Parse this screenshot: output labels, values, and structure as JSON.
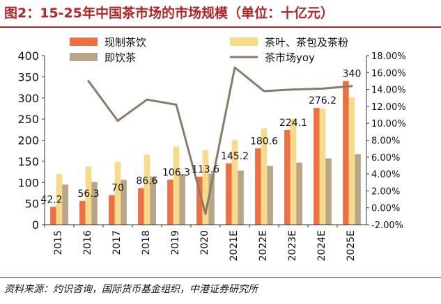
{
  "title": "图2：15-25年中国茶市场的市场规模（单位：十亿元）",
  "source": "资料来源：灼识咨询，国际货币基金组织，中港证券研究所",
  "colors": {
    "series_fresh": "#ec7044",
    "series_tea_leaf": "#f8db8a",
    "series_instant": "#b9a688",
    "series_yoy": "#8a7a68",
    "title": "#b42525"
  },
  "chart_data": {
    "type": "bar",
    "categories": [
      "2015",
      "2016",
      "2017",
      "2018",
      "2019",
      "2020",
      "2021E",
      "2022E",
      "2023E",
      "2024E",
      "2025E"
    ],
    "series": [
      {
        "name": "现制茶饮",
        "axis": "left",
        "kind": "bar",
        "values": [
          42.2,
          56.3,
          70,
          86.6,
          106.3,
          113.6,
          145.2,
          180.6,
          224.1,
          276.2,
          340
        ],
        "labels": [
          "42.2",
          "56.3",
          "70",
          "86.6",
          "106.3",
          "113.6",
          "145.2",
          "180.6",
          "224.1",
          "276.2",
          "340"
        ]
      },
      {
        "name": "茶叶、茶包及茶粉",
        "axis": "left",
        "kind": "bar",
        "values": [
          120,
          138,
          149,
          166,
          185,
          176,
          200,
          228,
          250,
          275,
          301
        ]
      },
      {
        "name": "即饮茶",
        "axis": "left",
        "kind": "bar",
        "values": [
          95,
          101,
          106,
          114,
          120,
          121,
          128,
          139,
          147,
          157,
          167
        ]
      },
      {
        "name": "茶市场yoy",
        "axis": "right",
        "kind": "line",
        "values": [
          null,
          15.0,
          10.3,
          12.8,
          12.2,
          -0.7,
          16.6,
          13.8,
          14.0,
          14.1,
          14.4
        ]
      }
    ],
    "y_left": {
      "min": 0,
      "max": 400,
      "step": 50,
      "ticks": [
        "0",
        "50",
        "100",
        "150",
        "200",
        "250",
        "300",
        "350",
        "400"
      ]
    },
    "y_right": {
      "min": -2,
      "max": 18,
      "step": 2,
      "ticks": [
        "-2.00%",
        "0.00%",
        "2.00%",
        "4.00%",
        "6.00%",
        "8.00%",
        "10.00%",
        "12.00%",
        "14.00%",
        "16.00%",
        "18.00%"
      ]
    },
    "legend_position": "top"
  }
}
